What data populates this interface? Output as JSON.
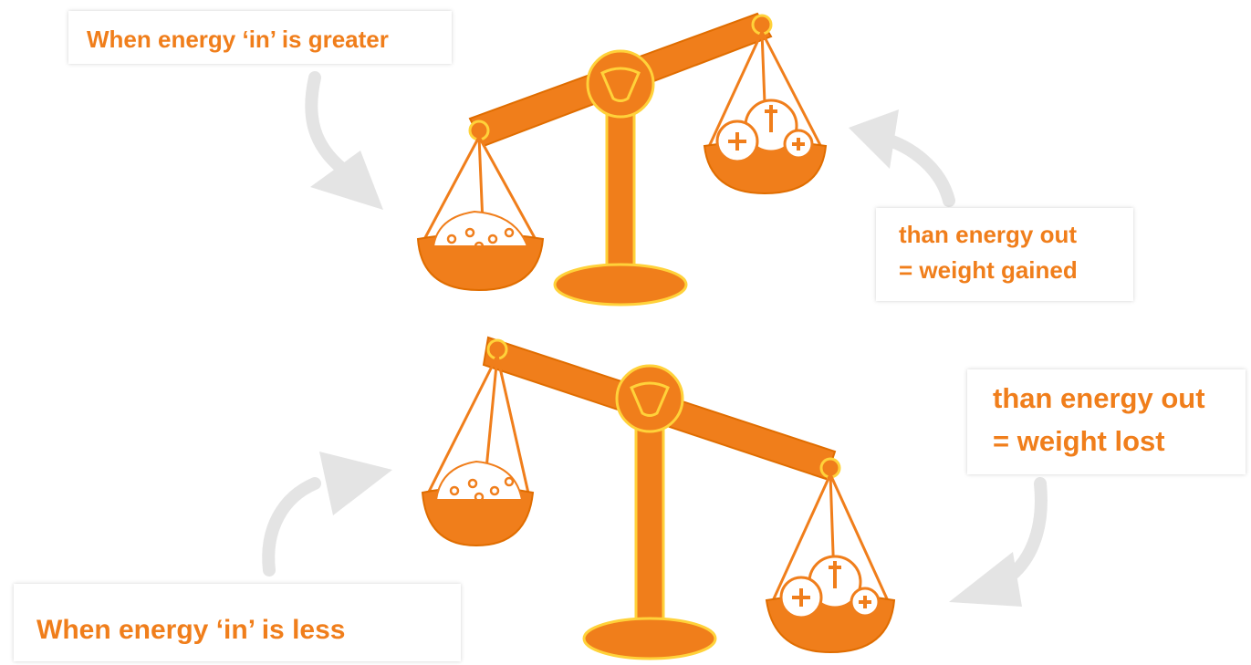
{
  "labels": {
    "top_left": "When energy ‘in’ is greater",
    "top_right": [
      "than energy out",
      "= weight gained"
    ],
    "bottom_right": [
      "than energy out",
      "= weight lost"
    ],
    "bottom_left": "When energy ‘in’ is less"
  }
}
